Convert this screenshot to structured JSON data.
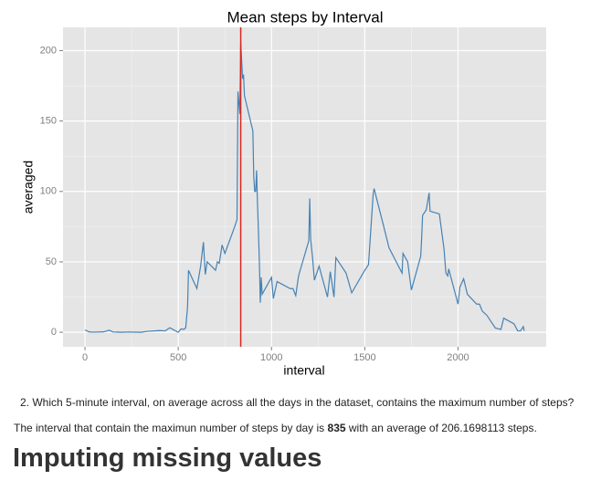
{
  "chart_data": {
    "type": "line",
    "title": "Mean steps by Interval",
    "x_label": "interval",
    "y_label": "averaged",
    "x": [
      0,
      20,
      40,
      55,
      100,
      130,
      150,
      200,
      230,
      300,
      330,
      400,
      430,
      455,
      500,
      515,
      530,
      540,
      550,
      555,
      600,
      620,
      635,
      645,
      655,
      700,
      710,
      720,
      735,
      750,
      800,
      815,
      820,
      830,
      835,
      845,
      850,
      855,
      900,
      905,
      910,
      915,
      920,
      925,
      930,
      935,
      940,
      945,
      950,
      1000,
      1010,
      1030,
      1100,
      1115,
      1130,
      1145,
      1200,
      1205,
      1210,
      1220,
      1230,
      1255,
      1300,
      1315,
      1335,
      1345,
      1400,
      1430,
      1500,
      1520,
      1545,
      1550,
      1600,
      1630,
      1700,
      1705,
      1730,
      1750,
      1800,
      1805,
      1810,
      1830,
      1845,
      1850,
      1900,
      1925,
      1935,
      1945,
      1950,
      2000,
      2010,
      2030,
      2050,
      2100,
      2115,
      2130,
      2155,
      2200,
      2230,
      2245,
      2300,
      2320,
      2335,
      2350,
      2355
    ],
    "series": [
      {
        "name": "averaged",
        "color": "#4682b4",
        "values": [
          1.7,
          0.3,
          0.1,
          0.1,
          0.3,
          1.4,
          0.2,
          0,
          0.2,
          0,
          0.6,
          1.2,
          1.0,
          3.2,
          0,
          2.4,
          2.0,
          3.1,
          18,
          44,
          31,
          47,
          64,
          41,
          50,
          44,
          50,
          49,
          62,
          56,
          74,
          80,
          171,
          155,
          206.17,
          180,
          183,
          168,
          143,
          110,
          100,
          100,
          115,
          91,
          72,
          50,
          21,
          39,
          27,
          39,
          24,
          36,
          31,
          31,
          26,
          40,
          65,
          95,
          66,
          53,
          37,
          47,
          25,
          43,
          25,
          53,
          42,
          28,
          44,
          48,
          98,
          102,
          76,
          60,
          42,
          56,
          50,
          30,
          54,
          67,
          83,
          87,
          99,
          86,
          84,
          59,
          42,
          40,
          45,
          20,
          32,
          38,
          27,
          20,
          20,
          15,
          12,
          3,
          2,
          10,
          6,
          1,
          1,
          4,
          1
        ]
      }
    ],
    "vline": 835,
    "vline_color": "#d7261e",
    "xlim": [
      -117.75,
      2472.75
    ],
    "xticks": [
      0,
      500,
      1000,
      1500,
      2000
    ],
    "ylim": [
      -10.3,
      216.5
    ],
    "yticks": [
      0,
      50,
      100,
      150,
      200
    ],
    "grid": true
  },
  "question": {
    "number": "2.",
    "text": "Which 5-minute interval, on average across all the days in the dataset, contains the maximum number of steps?"
  },
  "answer": {
    "before": "The interval that contain the maximun number of steps by day is ",
    "interval": "835",
    "after": " with an average of 206.1698113 steps."
  },
  "heading": "Imputing missing values"
}
